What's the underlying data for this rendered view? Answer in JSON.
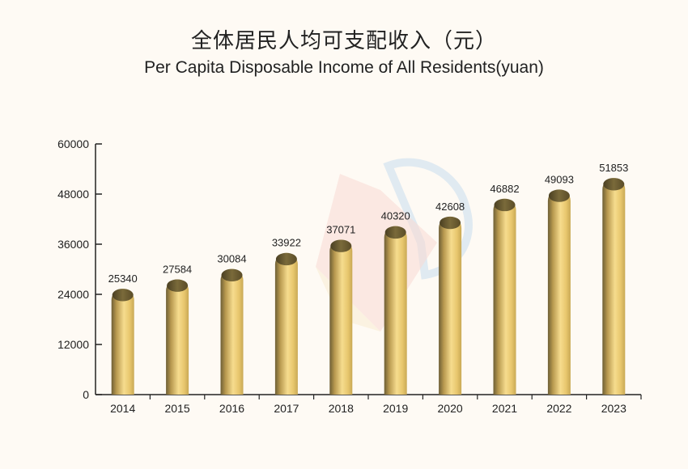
{
  "chart_data": {
    "type": "bar",
    "title": "全体居民人均可支配收入（元）",
    "subtitle": "Per Capita Disposable Income of All Residents(yuan)",
    "categories": [
      "2014",
      "2015",
      "2016",
      "2017",
      "2018",
      "2019",
      "2020",
      "2021",
      "2022",
      "2023"
    ],
    "values": [
      25340,
      27584,
      30084,
      33922,
      37071,
      40320,
      42608,
      46882,
      49093,
      51853
    ],
    "data_labels": [
      "25340",
      "27584",
      "30084",
      "33922",
      "37071",
      "40320",
      "42608",
      "46882",
      "49093",
      "51853"
    ],
    "y_ticks": [
      0,
      12000,
      24000,
      36000,
      48000,
      60000
    ],
    "y_tick_labels": [
      "0",
      "12000",
      "24000",
      "36000",
      "48000",
      "60000"
    ],
    "ylim": [
      0,
      60000
    ],
    "xlabel": "",
    "ylabel": "",
    "grid": false,
    "legend": "none",
    "colors": {
      "bar_light": "#f4d98a",
      "bar_mid": "#e6c46a",
      "bar_dark": "#7a6a3a",
      "axis": "#222222"
    }
  }
}
